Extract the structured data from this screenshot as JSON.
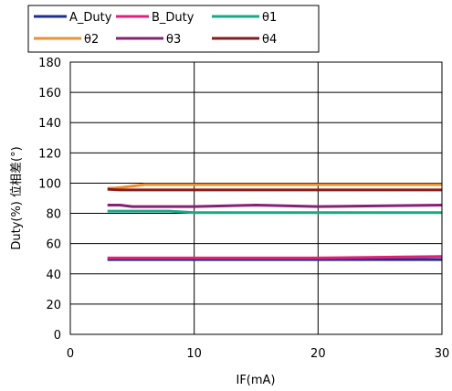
{
  "chart_data": {
    "type": "line",
    "xlabel": "IF(mA)",
    "ylabel": "Duty(%)  位相差(°)",
    "xlim": [
      0,
      30
    ],
    "ylim": [
      0,
      180
    ],
    "xticks": [
      0,
      10,
      20,
      30
    ],
    "yticks": [
      0,
      20,
      40,
      60,
      80,
      100,
      120,
      140,
      160,
      180
    ],
    "grid": true,
    "legend_position": "top",
    "series": [
      {
        "name": "A_Duty",
        "color": "#1f2f8f",
        "x": [
          3,
          5,
          10,
          15,
          20,
          30
        ],
        "y": [
          49.5,
          49.5,
          49.5,
          49.5,
          49.5,
          49.5
        ]
      },
      {
        "name": "B_Duty",
        "color": "#e0207a",
        "x": [
          3,
          5,
          10,
          15,
          20,
          30
        ],
        "y": [
          50.5,
          50.5,
          50.5,
          50.5,
          50.5,
          51.5
        ]
      },
      {
        "name": "θ1",
        "color": "#1aa886",
        "x": [
          3,
          4,
          8,
          10,
          15,
          20,
          30
        ],
        "y": [
          81.5,
          81.5,
          81.5,
          80.5,
          80.5,
          80.5,
          80.5
        ]
      },
      {
        "name": "θ2",
        "color": "#f0902a",
        "x": [
          3,
          4,
          6,
          10,
          15,
          20,
          30
        ],
        "y": [
          96.5,
          97,
          99,
          99,
          99,
          99,
          99
        ]
      },
      {
        "name": "θ3",
        "color": "#8a1f7a",
        "x": [
          3,
          4,
          5,
          10,
          15,
          20,
          30
        ],
        "y": [
          85.5,
          85.5,
          84.5,
          84.5,
          85.5,
          84.5,
          85.5
        ]
      },
      {
        "name": "θ4",
        "color": "#8b1a1a",
        "x": [
          3,
          4,
          6,
          10,
          15,
          20,
          30
        ],
        "y": [
          96,
          95.5,
          95.5,
          95.5,
          95.5,
          95.5,
          95.5
        ]
      }
    ]
  }
}
